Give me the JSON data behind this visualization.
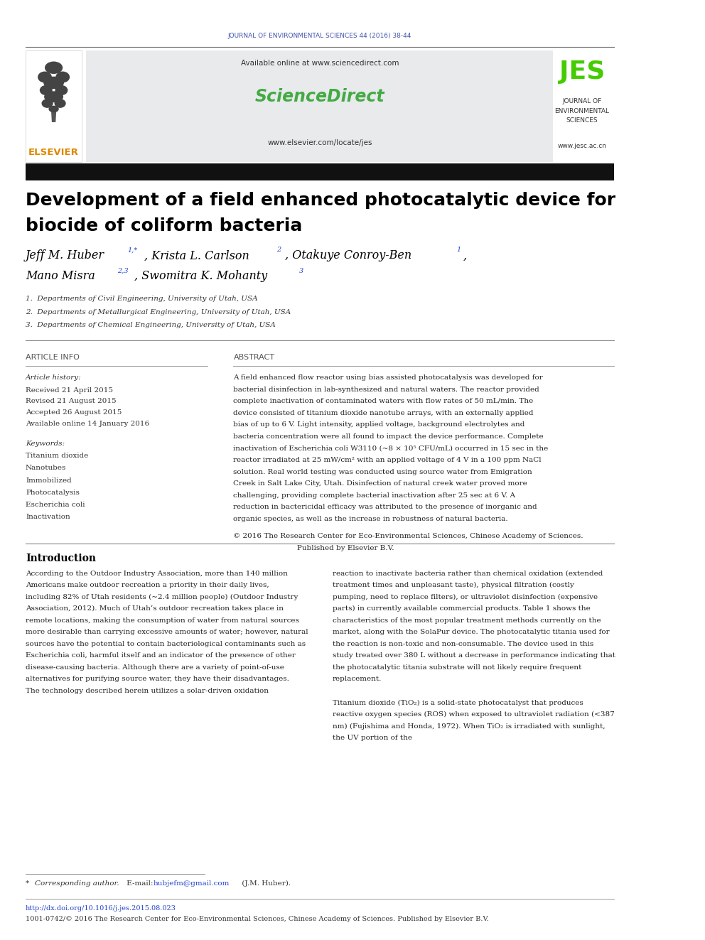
{
  "page_width": 9.92,
  "page_height": 13.23,
  "bg_color": "#ffffff",
  "journal_header_text": "JOURNAL OF ENVIRONMENTAL SCIENCES 44 (2016) 38-44",
  "journal_header_color": "#4455aa",
  "journal_header_fontsize": 6.5,
  "available_online": "Available online at www.sciencedirect.com",
  "sciencedirect_text": "ScienceDirect",
  "sciencedirect_color": "#44aa44",
  "elsevier_url": "www.elsevier.com/locate/jes",
  "elsevier_color": "#dd8800",
  "elsevier_text": "ELSEVIER",
  "jes_text": "JES",
  "jes_color": "#44cc00",
  "jes_sub1": "JOURNAL OF",
  "jes_sub2": "ENVIRONMENTAL",
  "jes_sub3": "SCIENCES",
  "jes_url": "www.jesc.ac.cn",
  "header_box_color": "#e8eaec",
  "title_line1": "Development of a field enhanced photocatalytic device for",
  "title_line2": "biocide of coliform bacteria",
  "title_color": "#000000",
  "title_fontsize": 18,
  "author_color": "#000000",
  "affil1": "1.  Departments of Civil Engineering, University of Utah, USA",
  "affil2": "2.  Departments of Metallurgical Engineering, University of Utah, USA",
  "affil3": "3.  Departments of Chemical Engineering, University of Utah, USA",
  "article_info_header": "ARTICLE INFO",
  "abstract_header": "ABSTRACT",
  "article_history_label": "Article history:",
  "received": "Received 21 April 2015",
  "revised": "Revised 21 August 2015",
  "accepted": "Accepted 26 August 2015",
  "available": "Available online 14 January 2016",
  "keywords_label": "Keywords:",
  "kw1": "Titanium dioxide",
  "kw2": "Nanotubes",
  "kw3": "Immobilized",
  "kw4": "Photocatalysis",
  "kw5": "Escherichia coli",
  "kw6": "Inactivation",
  "abstract_text": "A field enhanced flow reactor using bias assisted photocatalysis was developed for bacterial disinfection in lab-synthesized and natural waters. The reactor provided complete inactivation of contaminated waters with flow rates of 50 mL/min. The device consisted of titanium dioxide nanotube arrays, with an externally applied bias of up to 6 V. Light intensity, applied voltage, background electrolytes and bacteria concentration were all found to impact the device performance. Complete inactivation of Escherichia coli W3110 (~8 × 10⁵ CFU/mL) occurred in 15 sec in the reactor irradiated at 25 mW/cm² with an applied voltage of 4 V in a 100 ppm NaCl solution. Real world testing was conducted using source water from Emigration Creek in Salt Lake City, Utah. Disinfection of natural creek water proved more challenging, providing complete bacterial inactivation after 25 sec at 6 V. A reduction in bactericidal efficacy was attributed to the presence of inorganic and organic species, as well as the increase in robustness of natural bacteria.",
  "copyright_line1": "© 2016 The Research Center for Eco-Environmental Sciences, Chinese Academy of Sciences.",
  "copyright_line2": "                                         Published by Elsevier B.V.",
  "intro_header": "Introduction",
  "intro_text1": "According to the Outdoor Industry Association, more than 140 million Americans make outdoor recreation a priority in their daily lives, including 82% of Utah residents (~2.4 million people) (Outdoor Industry Association, 2012). Much of Utah’s outdoor recreation takes place in remote locations, making the consumption of water from natural sources more desirable than carrying excessive amounts of water; however, natural sources have the potential to contain bacteriological contaminants such as Escherichia coli, harmful itself and an indicator of the presence of other disease-causing bacteria. Although there are a variety of point-of-use alternatives for purifying source water, they have their disadvantages. The technology described herein utilizes a solar-driven oxidation",
  "intro_text2": "reaction to inactivate bacteria rather than chemical oxidation (extended treatment times and unpleasant taste), physical filtration (costly pumping, need to replace filters), or ultraviolet disinfection (expensive parts) in currently available commercial products. Table 1 shows the characteristics of the most popular treatment methods currently on the market, along with the SolaPur device. The photocatalytic titania used for the reaction is non-toxic and non-consumable. The device used in this study treated over 380 L without a decrease in performance indicating that the photocatalytic titania substrate will not likely require frequent replacement.",
  "tio2_text": "Titanium dioxide (TiO₂) is a solid-state photocatalyst that produces reactive oxygen species (ROS) when exposed to ultraviolet radiation (<387 nm) (Fujishima and Honda, 1972). When TiO₂ is irradiated with sunlight, the UV portion of the",
  "doi_text": "http://dx.doi.org/10.1016/j.jes.2015.08.023",
  "issn_text": "1001-0742/© 2016 The Research Center for Eco-Environmental Sciences, Chinese Academy of Sciences. Published by Elsevier B.V.",
  "section_header_color": "#555555",
  "link_color": "#2244cc",
  "gray_text_color": "#555555",
  "small_text_color": "#333333"
}
